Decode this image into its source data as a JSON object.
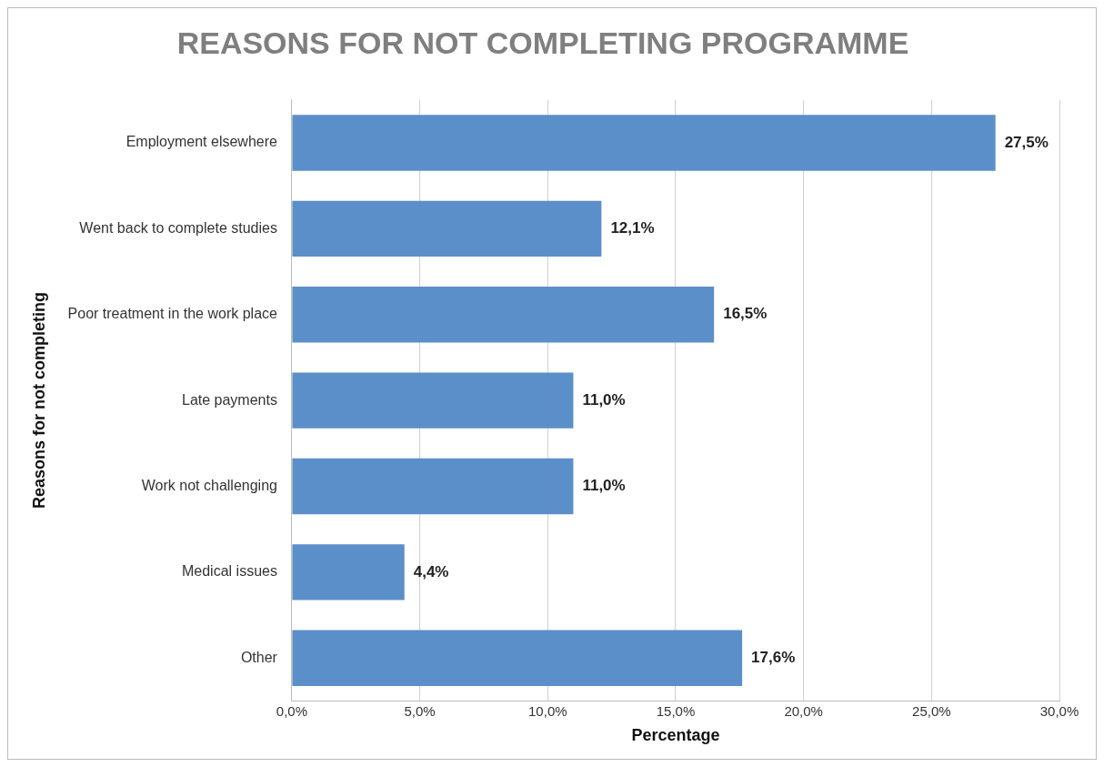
{
  "chart_data": {
    "type": "bar",
    "orientation": "horizontal",
    "title": "REASONS FOR NOT COMPLETING PROGRAMME",
    "xlabel": "Percentage",
    "ylabel": "Reasons for not completing",
    "categories": [
      "Employment elsewhere",
      "Went back to complete studies",
      "Poor treatment in the work place",
      "Late payments",
      "Work not challenging",
      "Medical issues",
      "Other"
    ],
    "values": [
      27.5,
      12.1,
      16.5,
      11.0,
      11.0,
      4.4,
      17.6
    ],
    "value_labels": [
      "27,5%",
      "12,1%",
      "16,5%",
      "11,0%",
      "11,0%",
      "4,4%",
      "17,6%"
    ],
    "color": "#5b8fc9",
    "xlim": [
      0,
      30
    ],
    "xticks": [
      {
        "value": 0,
        "label": "0,0%"
      },
      {
        "value": 5,
        "label": "5,0%"
      },
      {
        "value": 10,
        "label": "10,0%"
      },
      {
        "value": 15,
        "label": "15,0%"
      },
      {
        "value": 20,
        "label": "20,0%"
      },
      {
        "value": 25,
        "label": "25,0%"
      },
      {
        "value": 30,
        "label": "30,0%"
      }
    ],
    "grid": "x",
    "legend": false
  }
}
